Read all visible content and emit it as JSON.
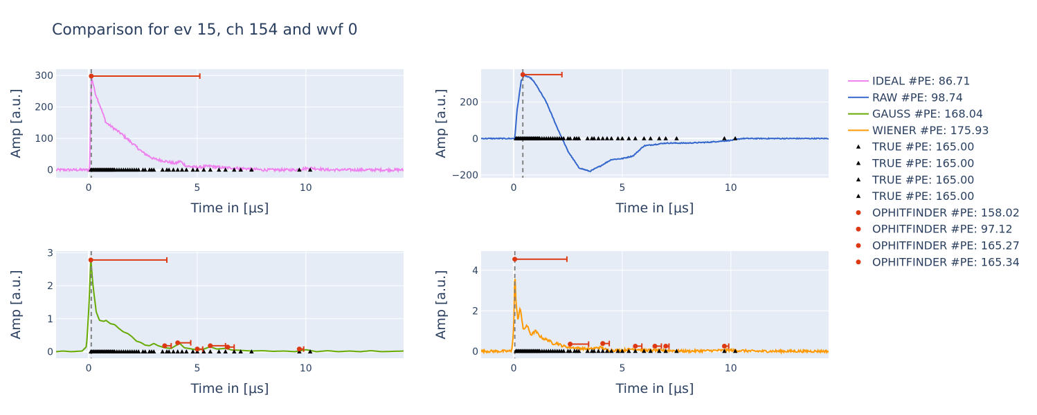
{
  "title": "Comparison for ev 15, ch 154 and wvf 0",
  "colors": {
    "ideal": "#EE82EE",
    "raw": "#3366CC",
    "gauss": "#66AA00",
    "wiener": "#FF9900",
    "true": "#000000",
    "ophit": "#DC3912",
    "grid": "#ffffff",
    "plot_bg": "#E5ECF6",
    "text": "#2a3f5f"
  },
  "legend": [
    {
      "label": "IDEAL #PE: 86.71",
      "type": "line",
      "color": "#EE82EE"
    },
    {
      "label": "RAW #PE: 98.74",
      "type": "line",
      "color": "#3366CC"
    },
    {
      "label": "GAUSS #PE: 168.04",
      "type": "line",
      "color": "#66AA00"
    },
    {
      "label": "WIENER #PE: 175.93",
      "type": "line",
      "color": "#FF9900"
    },
    {
      "label": "TRUE #PE: 165.00",
      "type": "triangle",
      "color": "#000000"
    },
    {
      "label": "TRUE #PE: 165.00",
      "type": "triangle",
      "color": "#000000"
    },
    {
      "label": "TRUE #PE: 165.00",
      "type": "triangle",
      "color": "#000000"
    },
    {
      "label": "TRUE #PE: 165.00",
      "type": "triangle",
      "color": "#000000"
    },
    {
      "label": "OPHITFINDER #PE: 158.02",
      "type": "dot",
      "color": "#DC3912"
    },
    {
      "label": "OPHITFINDER #PE: 97.12",
      "type": "dot",
      "color": "#DC3912"
    },
    {
      "label": "OPHITFINDER #PE: 165.27",
      "type": "dot",
      "color": "#DC3912"
    },
    {
      "label": "OPHITFINDER #PE: 165.34",
      "type": "dot",
      "color": "#DC3912"
    }
  ],
  "chart_data": [
    {
      "type": "line",
      "series_name": "IDEAL",
      "color": "#EE82EE",
      "xlabel": "Time in [μs]",
      "ylabel": "Amp [a.u.]",
      "xlim": [
        -1.5,
        14.5
      ],
      "ylim": [
        -25,
        320
      ],
      "xticks": [
        0,
        5,
        10
      ],
      "yticks": [
        0,
        100,
        200,
        300
      ],
      "noise": 4,
      "signal": [
        [
          -1.5,
          0
        ],
        [
          0.05,
          0
        ],
        [
          0.12,
          300
        ],
        [
          0.3,
          245
        ],
        [
          0.6,
          190
        ],
        [
          0.8,
          150
        ],
        [
          1.0,
          140
        ],
        [
          1.5,
          115
        ],
        [
          2.0,
          85
        ],
        [
          2.5,
          55
        ],
        [
          3.0,
          35
        ],
        [
          3.5,
          28
        ],
        [
          4.0,
          20
        ],
        [
          4.2,
          28
        ],
        [
          4.5,
          12
        ],
        [
          5.0,
          8
        ],
        [
          5.6,
          12
        ],
        [
          6.0,
          8
        ],
        [
          7.0,
          5
        ],
        [
          8.0,
          0
        ],
        [
          9.5,
          0
        ],
        [
          10.2,
          6
        ],
        [
          11,
          0
        ],
        [
          14.5,
          0
        ]
      ],
      "dashed_x": 0.12,
      "true_times": [
        0.1,
        0.15,
        0.2,
        0.25,
        0.3,
        0.35,
        0.4,
        0.45,
        0.5,
        0.55,
        0.6,
        0.65,
        0.7,
        0.75,
        0.8,
        0.85,
        0.9,
        0.95,
        1.0,
        1.05,
        1.1,
        1.15,
        1.2,
        1.3,
        1.4,
        1.5,
        1.6,
        1.7,
        1.8,
        1.9,
        2.0,
        2.1,
        2.2,
        2.3,
        2.5,
        2.6,
        2.8,
        2.9,
        3.0,
        3.4,
        3.6,
        3.7,
        3.9,
        4.1,
        4.3,
        4.5,
        4.8,
        5.0,
        5.3,
        5.6,
        6.0,
        6.3,
        6.7,
        7.0,
        7.5,
        9.7,
        10.2
      ],
      "ophit": [
        {
          "t": 0.12,
          "amp": 298,
          "err": 5.0
        }
      ]
    },
    {
      "type": "line",
      "series_name": "RAW",
      "color": "#3366CC",
      "xlabel": "Time in [μs]",
      "ylabel": "Amp [a.u.]",
      "xlim": [
        -1.5,
        14.5
      ],
      "ylim": [
        -215,
        380
      ],
      "xticks": [
        0,
        5,
        10
      ],
      "yticks": [
        -200,
        0,
        200
      ],
      "noise": 2.5,
      "signal": [
        [
          -1.5,
          0
        ],
        [
          0.05,
          0
        ],
        [
          0.15,
          150
        ],
        [
          0.35,
          320
        ],
        [
          0.5,
          345
        ],
        [
          0.8,
          330
        ],
        [
          1.0,
          300
        ],
        [
          1.5,
          200
        ],
        [
          2.0,
          60
        ],
        [
          2.5,
          -70
        ],
        [
          3.0,
          -160
        ],
        [
          3.5,
          -180
        ],
        [
          4.0,
          -150
        ],
        [
          4.5,
          -115
        ],
        [
          5.0,
          -110
        ],
        [
          5.5,
          -95
        ],
        [
          6.0,
          -40
        ],
        [
          7.0,
          -25
        ],
        [
          8.0,
          -25
        ],
        [
          9.0,
          -20
        ],
        [
          10.0,
          -10
        ],
        [
          10.5,
          0
        ],
        [
          14.5,
          0
        ]
      ],
      "dashed_x": 0.42,
      "true_times": [
        0.1,
        0.15,
        0.2,
        0.25,
        0.3,
        0.35,
        0.4,
        0.45,
        0.5,
        0.55,
        0.6,
        0.65,
        0.7,
        0.75,
        0.8,
        0.85,
        0.9,
        0.95,
        1.0,
        1.05,
        1.1,
        1.15,
        1.2,
        1.3,
        1.4,
        1.5,
        1.6,
        1.7,
        1.8,
        1.9,
        2.0,
        2.1,
        2.2,
        2.3,
        2.5,
        2.6,
        2.8,
        2.9,
        3.0,
        3.4,
        3.6,
        3.7,
        3.9,
        4.1,
        4.3,
        4.5,
        4.8,
        5.0,
        5.3,
        5.6,
        6.0,
        6.3,
        6.7,
        7.0,
        7.5,
        9.7,
        10.2
      ],
      "ophit": [
        {
          "t": 0.42,
          "amp": 350,
          "err": 1.8
        }
      ]
    },
    {
      "type": "line",
      "series_name": "GAUSS",
      "color": "#66AA00",
      "xlabel": "Time in [μs]",
      "ylabel": "Amp [a.u.]",
      "xlim": [
        -1.5,
        14.5
      ],
      "ylim": [
        -0.2,
        3.05
      ],
      "xticks": [
        0,
        5,
        10
      ],
      "yticks": [
        0,
        1,
        2,
        3
      ],
      "noise": 0,
      "signal": [
        [
          -1.5,
          0
        ],
        [
          -1.2,
          0.02
        ],
        [
          -0.8,
          0.0
        ],
        [
          -0.3,
          0.02
        ],
        [
          -0.1,
          0.15
        ],
        [
          0.0,
          1.2
        ],
        [
          0.1,
          2.8
        ],
        [
          0.2,
          2.0
        ],
        [
          0.35,
          1.2
        ],
        [
          0.5,
          0.95
        ],
        [
          0.7,
          0.92
        ],
        [
          0.8,
          0.95
        ],
        [
          1.0,
          0.85
        ],
        [
          1.2,
          0.82
        ],
        [
          1.4,
          0.7
        ],
        [
          1.6,
          0.6
        ],
        [
          1.8,
          0.55
        ],
        [
          2.0,
          0.45
        ],
        [
          2.2,
          0.32
        ],
        [
          2.4,
          0.28
        ],
        [
          2.6,
          0.2
        ],
        [
          2.8,
          0.18
        ],
        [
          3.0,
          0.25
        ],
        [
          3.2,
          0.18
        ],
        [
          3.5,
          0.12
        ],
        [
          3.8,
          0.1
        ],
        [
          4.0,
          0.18
        ],
        [
          4.2,
          0.25
        ],
        [
          4.4,
          0.12
        ],
        [
          4.6,
          0.1
        ],
        [
          5.0,
          0.05
        ],
        [
          5.3,
          0.08
        ],
        [
          5.6,
          0.15
        ],
        [
          5.9,
          0.08
        ],
        [
          6.3,
          0.1
        ],
        [
          6.6,
          0.05
        ],
        [
          7.0,
          0.04
        ],
        [
          7.5,
          0.02
        ],
        [
          8,
          0.03
        ],
        [
          8.5,
          0.01
        ],
        [
          9,
          0.02
        ],
        [
          9.5,
          0.0
        ],
        [
          10.0,
          0.06
        ],
        [
          10.5,
          0.0
        ],
        [
          11,
          0.03
        ],
        [
          11.5,
          0.0
        ],
        [
          12,
          0.02
        ],
        [
          12.5,
          0.0
        ],
        [
          13,
          0.03
        ],
        [
          13.5,
          0.0
        ],
        [
          14.5,
          0.02
        ]
      ],
      "dashed_x": 0.12,
      "true_times": [
        0.1,
        0.15,
        0.2,
        0.25,
        0.3,
        0.35,
        0.4,
        0.45,
        0.5,
        0.55,
        0.6,
        0.65,
        0.7,
        0.75,
        0.8,
        0.85,
        0.9,
        0.95,
        1.0,
        1.05,
        1.1,
        1.15,
        1.2,
        1.3,
        1.4,
        1.5,
        1.6,
        1.7,
        1.8,
        1.9,
        2.0,
        2.1,
        2.2,
        2.3,
        2.5,
        2.6,
        2.8,
        2.9,
        3.0,
        3.4,
        3.6,
        3.7,
        3.9,
        4.1,
        4.3,
        4.5,
        4.8,
        5.0,
        5.3,
        5.6,
        6.0,
        6.3,
        6.7,
        7.0,
        7.5,
        9.7,
        10.2
      ],
      "ophit": [
        {
          "t": 0.1,
          "amp": 2.78,
          "err": 3.5
        },
        {
          "t": 3.5,
          "amp": 0.18,
          "err": 0.3
        },
        {
          "t": 4.1,
          "amp": 0.27,
          "err": 0.6
        },
        {
          "t": 5.0,
          "amp": 0.08,
          "err": 0.25
        },
        {
          "t": 5.6,
          "amp": 0.18,
          "err": 0.7
        },
        {
          "t": 6.4,
          "amp": 0.14,
          "err": 0.3
        },
        {
          "t": 9.7,
          "amp": 0.08,
          "err": 0.2
        }
      ]
    },
    {
      "type": "line",
      "series_name": "WIENER",
      "color": "#FF9900",
      "xlabel": "Time in [μs]",
      "ylabel": "Amp [a.u.]",
      "xlim": [
        -1.5,
        14.5
      ],
      "ylim": [
        -0.35,
        4.95
      ],
      "xticks": [
        0,
        5,
        10
      ],
      "yticks": [
        0,
        2,
        4
      ],
      "noise": 0.06,
      "signal": [
        [
          -1.5,
          0
        ],
        [
          -0.1,
          0
        ],
        [
          0.0,
          1.0
        ],
        [
          0.05,
          4.2
        ],
        [
          0.1,
          2.5
        ],
        [
          0.2,
          1.5
        ],
        [
          0.3,
          2.2
        ],
        [
          0.45,
          1.0
        ],
        [
          0.6,
          1.3
        ],
        [
          0.8,
          0.8
        ],
        [
          1.0,
          1.0
        ],
        [
          1.2,
          0.75
        ],
        [
          1.4,
          0.6
        ],
        [
          1.6,
          0.55
        ],
        [
          1.8,
          0.38
        ],
        [
          2.0,
          0.4
        ],
        [
          2.2,
          0.28
        ],
        [
          2.5,
          0.2
        ],
        [
          3.0,
          0.15
        ],
        [
          3.5,
          0.1
        ],
        [
          4.0,
          0.2
        ],
        [
          4.3,
          0.05
        ],
        [
          5.0,
          0.04
        ],
        [
          5.5,
          0.12
        ],
        [
          6.0,
          0.05
        ],
        [
          7,
          0.04
        ],
        [
          8,
          0.0
        ],
        [
          10.0,
          0.05
        ],
        [
          11,
          0
        ],
        [
          14.5,
          0
        ]
      ],
      "dashed_x": 0.05,
      "true_times": [
        0.1,
        0.15,
        0.2,
        0.25,
        0.3,
        0.35,
        0.4,
        0.45,
        0.5,
        0.55,
        0.6,
        0.65,
        0.7,
        0.75,
        0.8,
        0.85,
        0.9,
        0.95,
        1.0,
        1.05,
        1.1,
        1.15,
        1.2,
        1.3,
        1.4,
        1.5,
        1.6,
        1.7,
        1.8,
        1.9,
        2.0,
        2.1,
        2.2,
        2.3,
        2.5,
        2.6,
        2.8,
        2.9,
        3.0,
        3.4,
        3.6,
        3.7,
        3.9,
        4.1,
        4.3,
        4.5,
        4.8,
        5.0,
        5.3,
        5.6,
        6.0,
        6.3,
        6.7,
        7.0,
        7.5,
        9.7,
        10.2
      ],
      "ophit": [
        {
          "t": 0.05,
          "amp": 4.55,
          "err": 2.4
        },
        {
          "t": 2.6,
          "amp": 0.35,
          "err": 0.85
        },
        {
          "t": 4.1,
          "amp": 0.38,
          "err": 0.3
        },
        {
          "t": 5.6,
          "amp": 0.25,
          "err": 0.3
        },
        {
          "t": 6.5,
          "amp": 0.25,
          "err": 0.3
        },
        {
          "t": 7.0,
          "amp": 0.25,
          "err": 0.15
        },
        {
          "t": 9.7,
          "amp": 0.25,
          "err": 0.2
        }
      ]
    }
  ]
}
